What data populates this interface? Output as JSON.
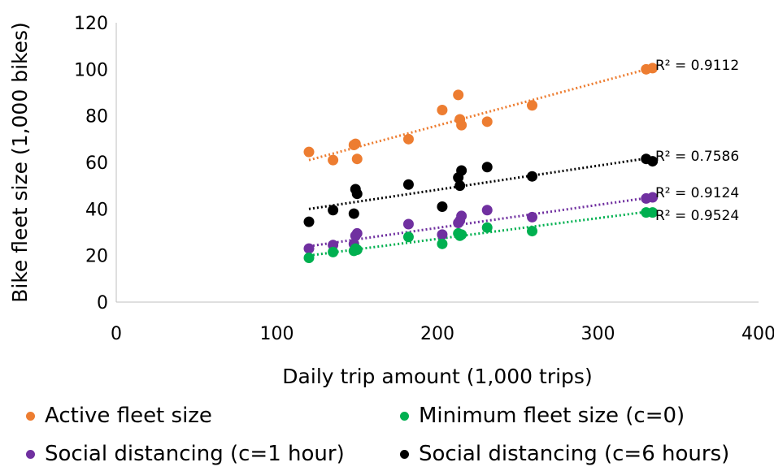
{
  "chart_data": {
    "type": "scatter",
    "xlabel": "Daily trip amount (1,000 trips)",
    "ylabel": "Bike fleet size (1,000 bikes)",
    "xlim": [
      0,
      400
    ],
    "ylim": [
      0,
      120
    ],
    "xticks": [
      "0",
      "100",
      "200",
      "300",
      "400"
    ],
    "yticks": [
      "0",
      "20",
      "40",
      "60",
      "80",
      "100",
      "120"
    ],
    "grid": false,
    "legend_position": "bottom",
    "series": [
      {
        "name": "Active fleet size",
        "color": "#ED7D31",
        "r2_label": "R² = 0.9112",
        "trend": [
          [
            120,
            61
          ],
          [
            333,
            100.5
          ]
        ],
        "points": [
          [
            120,
            64.5
          ],
          [
            135,
            61
          ],
          [
            148,
            67.5
          ],
          [
            149,
            68
          ],
          [
            150,
            61.5
          ],
          [
            182,
            70
          ],
          [
            203,
            82.5
          ],
          [
            213,
            89
          ],
          [
            214,
            78.5
          ],
          [
            215,
            76
          ],
          [
            231,
            77.5
          ],
          [
            259,
            84.5
          ],
          [
            330,
            100
          ],
          [
            334,
            100.5
          ]
        ]
      },
      {
        "name": "Minimum fleet size (c=0)",
        "color": "#00B050",
        "r2_label": "R² = 0.9524",
        "trend": [
          [
            120,
            20
          ],
          [
            333,
            39
          ]
        ],
        "points": [
          [
            120,
            19
          ],
          [
            135,
            21.5
          ],
          [
            148,
            22
          ],
          [
            149,
            23
          ],
          [
            150,
            22.5
          ],
          [
            182,
            28
          ],
          [
            203,
            25
          ],
          [
            213,
            29.5
          ],
          [
            214,
            28.5
          ],
          [
            215,
            29
          ],
          [
            231,
            32
          ],
          [
            259,
            30.5
          ],
          [
            330,
            38.5
          ],
          [
            334,
            38.5
          ]
        ]
      },
      {
        "name": "Social distancing (c=1 hour)",
        "color": "#7030A0",
        "r2_label": "R² = 0.9124",
        "trend": [
          [
            120,
            24
          ],
          [
            333,
            45
          ]
        ],
        "points": [
          [
            120,
            23
          ],
          [
            135,
            24.5
          ],
          [
            148,
            25
          ],
          [
            149,
            28.5
          ],
          [
            150,
            29.5
          ],
          [
            182,
            33.5
          ],
          [
            203,
            29
          ],
          [
            213,
            34
          ],
          [
            214,
            35
          ],
          [
            215,
            37
          ],
          [
            231,
            39.5
          ],
          [
            259,
            36.5
          ],
          [
            330,
            44.5
          ],
          [
            334,
            45
          ]
        ]
      },
      {
        "name": "Social distancing (c=6 hours)",
        "color": "#000000",
        "r2_label": "R² = 0.7586",
        "trend": [
          [
            120,
            40
          ],
          [
            333,
            62
          ]
        ],
        "points": [
          [
            120,
            34.5
          ],
          [
            135,
            39.5
          ],
          [
            148,
            38
          ],
          [
            149,
            48.5
          ],
          [
            150,
            46.5
          ],
          [
            182,
            50.5
          ],
          [
            203,
            41
          ],
          [
            213,
            53.5
          ],
          [
            214,
            50
          ],
          [
            215,
            56.5
          ],
          [
            231,
            58
          ],
          [
            259,
            54
          ],
          [
            330,
            61.5
          ],
          [
            334,
            60.5
          ]
        ]
      }
    ]
  }
}
